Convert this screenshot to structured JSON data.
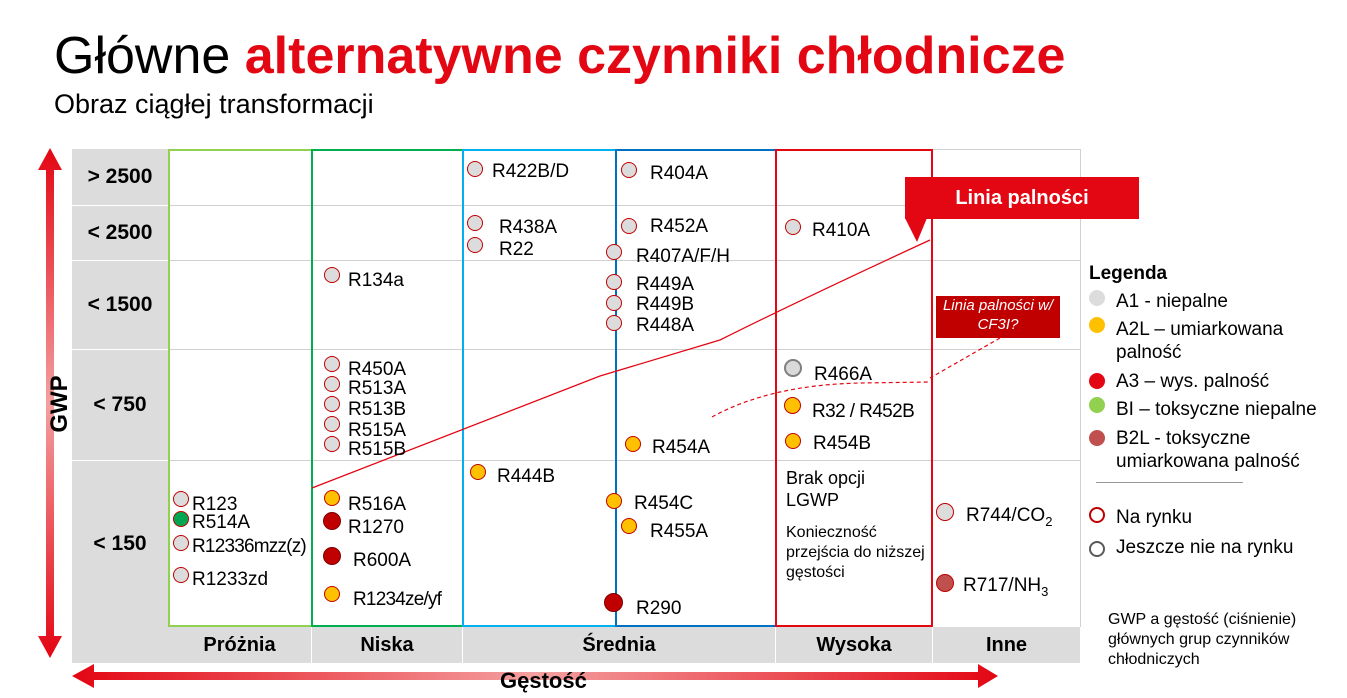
{
  "title": {
    "part1": "Główne ",
    "part2": "alternatywne czynniki chłodnicze"
  },
  "subtitle": "Obraz ciągłej transformacji",
  "axes": {
    "y_label": "GWP",
    "x_label": "Gęstość"
  },
  "rows": [
    "> 2500",
    "< 2500",
    "< 1500",
    "< 750",
    "< 150"
  ],
  "columns": [
    "Próżnia",
    "Niska",
    "Średnia",
    "Wysoka",
    "Inne"
  ],
  "colors": {
    "A1": "#dcdcdc",
    "A2L": "#ffc000",
    "A3": "#c00000",
    "BI": "#92d050",
    "B2L": "#c0504d",
    "accent": "#e30613"
  },
  "refrigerants": [
    {
      "name": "R123",
      "class": "A1"
    },
    {
      "name": "R514A",
      "class": "BI"
    },
    {
      "name": "R12336mzz(z)",
      "class": "A1"
    },
    {
      "name": "R1233zd",
      "class": "A1"
    },
    {
      "name": "R134a",
      "class": "A1"
    },
    {
      "name": "R450A",
      "class": "A1"
    },
    {
      "name": "R513A",
      "class": "A1"
    },
    {
      "name": "R513B",
      "class": "A1"
    },
    {
      "name": "R515A",
      "class": "A1"
    },
    {
      "name": "R515B",
      "class": "A1"
    },
    {
      "name": "R516A",
      "class": "A2L"
    },
    {
      "name": "R1270",
      "class": "A3"
    },
    {
      "name": "R600A",
      "class": "A3"
    },
    {
      "name": "R1234ze/yf",
      "class": "A2L"
    },
    {
      "name": "R422B/D",
      "class": "A1"
    },
    {
      "name": "R438A",
      "class": "A1"
    },
    {
      "name": "R22",
      "class": "A1"
    },
    {
      "name": "R444B",
      "class": "A2L"
    },
    {
      "name": "R404A",
      "class": "A1"
    },
    {
      "name": "R452A",
      "class": "A1"
    },
    {
      "name": "R407A/F/H",
      "class": "A1"
    },
    {
      "name": "R449A",
      "class": "A1"
    },
    {
      "name": "R449B",
      "class": "A1"
    },
    {
      "name": "R448A",
      "class": "A1"
    },
    {
      "name": "R454A",
      "class": "A2L"
    },
    {
      "name": "R454C",
      "class": "A2L"
    },
    {
      "name": "R455A",
      "class": "A2L"
    },
    {
      "name": "R290",
      "class": "A3"
    },
    {
      "name": "R410A",
      "class": "A1"
    },
    {
      "name": "R466A",
      "class": "A1",
      "market": "not-yet"
    },
    {
      "name": "R32 / R452B",
      "class": "A2L"
    },
    {
      "name": "R454B",
      "class": "A2L"
    },
    {
      "name": "R744/CO2",
      "class": "A1"
    },
    {
      "name": "R717/NH3",
      "class": "B2L"
    }
  ],
  "texts": {
    "brak": "Brak opcji LGWP",
    "koniecznosc": "Konieczność przejścia do niższej gęstości",
    "linia": "Linia palności",
    "cf3i": "Linia palności w/ CF3I?"
  },
  "legend": {
    "title": "Legenda",
    "items": [
      {
        "label": "A1 - niepalne"
      },
      {
        "label": "A2L – umiarkowana palność"
      },
      {
        "label": "A3 – wys. palność"
      },
      {
        "label": "BI – toksyczne niepalne"
      },
      {
        "label": "B2L - toksyczne umiarkowana palność"
      }
    ],
    "market": [
      {
        "label": "Na rynku"
      },
      {
        "label": "Jeszcze nie na rynku"
      }
    ]
  },
  "note": "GWP a gęstość (ciśnienie) głównych grup czynników chłodniczych"
}
